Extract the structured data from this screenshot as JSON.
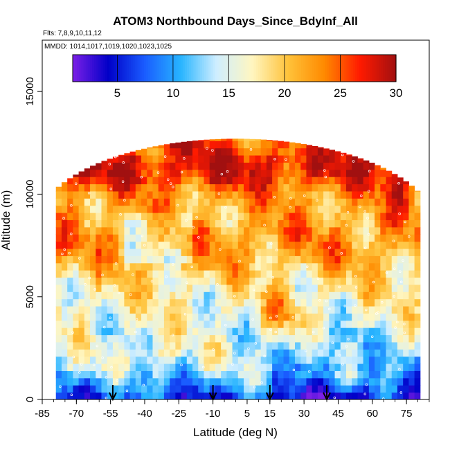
{
  "chart_data": {
    "type": "heatmap",
    "title": "ATOM3 Northbound Days_Since_BdyInf_All",
    "flights_label": "Flts: 7,8,9,10,11,12",
    "mmdd_label": "MMDD: 1014,1017,1019,1020,1023,1025",
    "xlabel": "Latitude (deg N)",
    "ylabel": "Altitude (m)",
    "xlim": [
      -85,
      85
    ],
    "ylim": [
      0,
      17500
    ],
    "x_ticks": [
      -85,
      -70,
      -55,
      -40,
      -25,
      -10,
      5,
      15,
      30,
      45,
      60,
      75
    ],
    "x_tick_labels": [
      "-85",
      "-70",
      "-55",
      "-40",
      "-25",
      "-10",
      "5",
      "15",
      "30",
      "45",
      "60",
      "75"
    ],
    "y_ticks": [
      0,
      5000,
      10000,
      15000
    ],
    "y_tick_labels": [
      "0",
      "5000",
      "10000",
      "15000"
    ],
    "colorbar": {
      "range": [
        1,
        30
      ],
      "ticks": [
        5,
        10,
        15,
        20,
        25,
        30
      ],
      "tick_labels": [
        "5",
        "10",
        "15",
        "20",
        "25",
        "30"
      ],
      "colors": [
        "#7b1fe6",
        "#0000c8",
        "#1a5cff",
        "#27b4ff",
        "#cfeeff",
        "#fff6c0",
        "#ffc23a",
        "#ff8a00",
        "#ff1a00",
        "#a11010"
      ]
    },
    "arrows_latitude": [
      -54,
      -10,
      15,
      40
    ],
    "field_description": "Days since boundary-layer influence: ~8-12 near surface, ~15-20 in mid troposphere, ~20-30 near 10-12 km"
  }
}
